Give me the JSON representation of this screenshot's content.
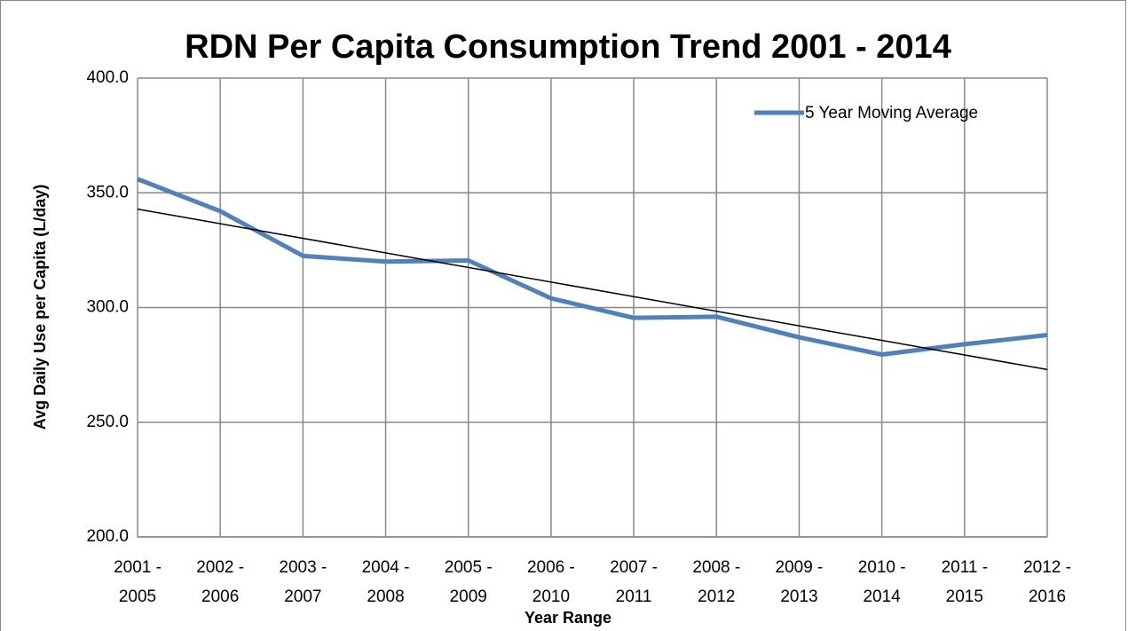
{
  "chart_data": {
    "type": "line",
    "title": "RDN Per Capita Consumption Trend 2001 - 2014",
    "x_label": "Year Range",
    "y_label": "Avg Daily Use per Capita (L/day)",
    "categories": [
      "2001 - 2005",
      "2002 - 2006",
      "2003 - 2007",
      "2004 - 2008",
      "2005 - 2009",
      "2006 - 2010",
      "2007 - 2011",
      "2008 - 2012",
      "2009 - 2013",
      "2010 - 2014",
      "2011 - 2015",
      "2012 - 2016"
    ],
    "series": [
      {
        "name": "5 Year Moving Average",
        "color": "#4f81bd",
        "values": [
          356.0,
          342.0,
          322.5,
          320.0,
          320.5,
          304.0,
          295.5,
          296.0,
          287.0,
          279.5,
          284.0,
          288.0
        ]
      }
    ],
    "ylim": [
      200,
      400
    ],
    "yticks": [
      {
        "value": 200,
        "label": "200.0"
      },
      {
        "value": 250,
        "label": "250.0"
      },
      {
        "value": 300,
        "label": "300.0"
      },
      {
        "value": 350,
        "label": "350.0"
      },
      {
        "value": 400,
        "label": "400.0"
      }
    ],
    "grid": true,
    "trendline": "linear",
    "legend": "top-right"
  }
}
